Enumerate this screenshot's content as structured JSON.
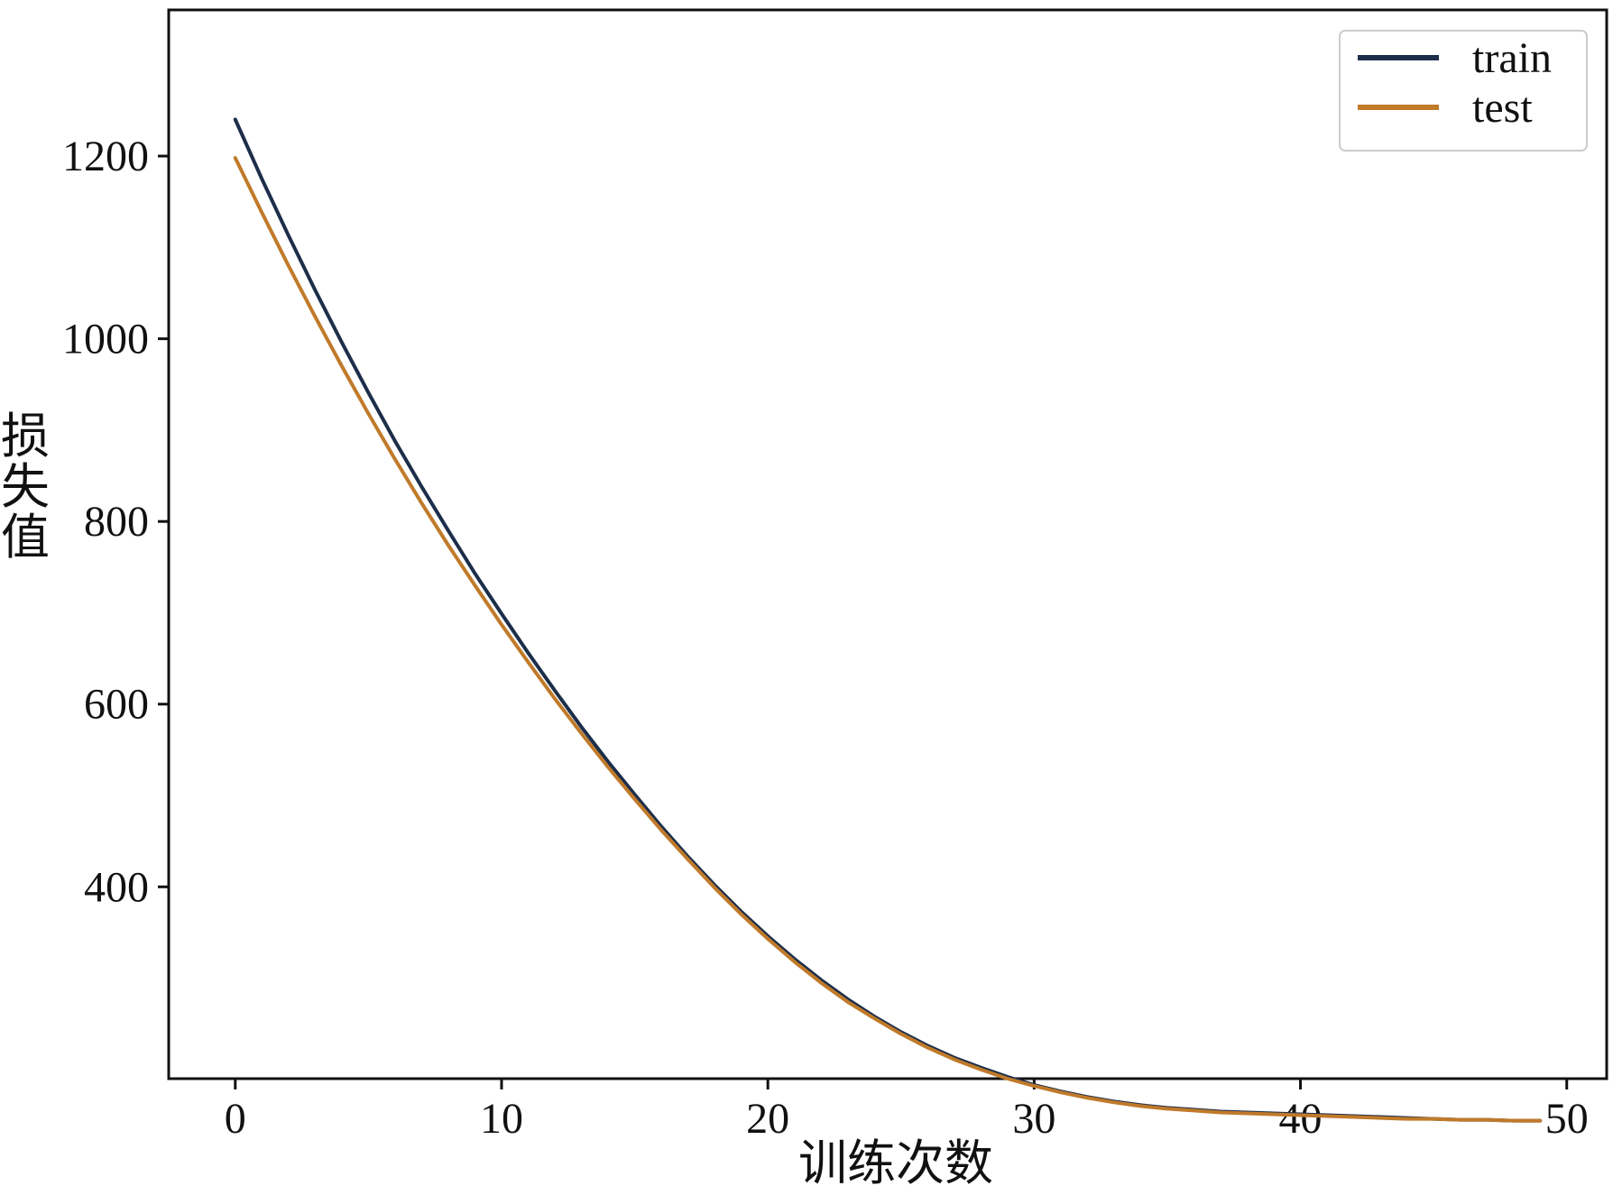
{
  "chart_data": {
    "type": "line",
    "xlabel": "训练次数",
    "ylabel": "损失值",
    "xlim": [
      -2.5,
      51.5
    ],
    "ylim": [
      190,
      1360
    ],
    "xticks": [
      0,
      10,
      20,
      30,
      40,
      50
    ],
    "yticks": [
      400,
      600,
      800,
      1000,
      1200
    ],
    "grid": false,
    "legend_position": "top-right",
    "series": [
      {
        "name": "train",
        "color": "#1c2e4a",
        "x": [
          0,
          1,
          2,
          3,
          4,
          5,
          6,
          7,
          8,
          9,
          10,
          11,
          12,
          13,
          14,
          15,
          16,
          17,
          18,
          19,
          20,
          21,
          22,
          23,
          24,
          25,
          26,
          27,
          28,
          29,
          30,
          31,
          32,
          33,
          34,
          35,
          36,
          37,
          38,
          39,
          40,
          41,
          42,
          43,
          44,
          45,
          46,
          47,
          48,
          49
        ],
        "y": [
          1240,
          1175,
          1113,
          1053,
          996,
          941,
          888,
          838,
          790,
          743,
          699,
          656,
          615,
          575,
          537,
          501,
          466,
          433,
          402,
          373,
          346,
          321,
          298,
          277,
          258,
          241,
          226,
          213,
          202,
          192,
          183,
          176,
          170,
          165,
          161,
          158,
          156,
          154,
          153,
          152,
          151,
          150,
          149,
          148,
          147,
          146,
          145,
          145,
          144,
          144
        ]
      },
      {
        "name": "test",
        "color": "#c07a2a",
        "x": [
          0,
          1,
          2,
          3,
          4,
          5,
          6,
          7,
          8,
          9,
          10,
          11,
          12,
          13,
          14,
          15,
          16,
          17,
          18,
          19,
          20,
          21,
          22,
          23,
          24,
          25,
          26,
          27,
          28,
          29,
          30,
          31,
          32,
          33,
          34,
          35,
          36,
          37,
          38,
          39,
          40,
          41,
          42,
          43,
          44,
          45,
          46,
          47,
          48,
          49
        ],
        "y": [
          1198,
          1138,
          1080,
          1024,
          970,
          918,
          868,
          820,
          774,
          730,
          687,
          646,
          606,
          568,
          531,
          496,
          462,
          430,
          399,
          370,
          343,
          318,
          295,
          274,
          256,
          239,
          224,
          211,
          200,
          190,
          182,
          175,
          169,
          164,
          160,
          157,
          155,
          153,
          152,
          151,
          150,
          149,
          148,
          147,
          146,
          146,
          145,
          145,
          144,
          144
        ]
      }
    ]
  }
}
